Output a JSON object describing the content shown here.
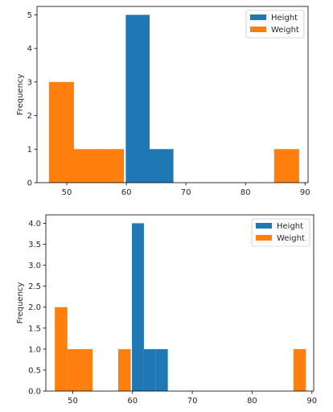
{
  "chart_data": [
    {
      "type": "bar",
      "title": "",
      "xlabel": "",
      "ylabel": "Frequency",
      "xlim": [
        45,
        90.5
      ],
      "ylim": [
        0,
        5.25
      ],
      "xticks": [
        50,
        60,
        70,
        80,
        90
      ],
      "yticks": [
        0,
        1,
        2,
        3,
        4,
        5
      ],
      "legend": "top-right",
      "series": [
        {
          "name": "Height",
          "color": "#1f77b4",
          "bins": [
            {
              "x0": 59.9,
              "x1": 63.9,
              "count": 5
            },
            {
              "x0": 63.9,
              "x1": 67.9,
              "count": 1
            }
          ]
        },
        {
          "name": "Weight",
          "color": "#ff7f0e",
          "bins": [
            {
              "x0": 47.0,
              "x1": 51.2,
              "count": 3
            },
            {
              "x0": 51.2,
              "x1": 55.4,
              "count": 1
            },
            {
              "x0": 55.4,
              "x1": 59.6,
              "count": 1
            },
            {
              "x0": 84.8,
              "x1": 89.0,
              "count": 1
            }
          ]
        }
      ]
    },
    {
      "type": "bar",
      "title": "",
      "xlabel": "",
      "ylabel": "Frequency",
      "xlim": [
        45.5,
        90.3
      ],
      "ylim": [
        0,
        4.2
      ],
      "xticks": [
        50,
        60,
        70,
        80,
        90
      ],
      "yticks": [
        0.0,
        0.5,
        1.0,
        1.5,
        2.0,
        2.5,
        3.0,
        3.5,
        4.0
      ],
      "ytick_labels": [
        "0.0",
        "0.5",
        "1.0",
        "1.5",
        "2.0",
        "2.5",
        "3.0",
        "3.5",
        "4.0"
      ],
      "legend": "top-right",
      "series": [
        {
          "name": "Height",
          "color": "#1f77b4",
          "bins": [
            {
              "x0": 59.9,
              "x1": 61.9,
              "count": 4
            },
            {
              "x0": 61.9,
              "x1": 63.9,
              "count": 1
            },
            {
              "x0": 63.9,
              "x1": 65.9,
              "count": 1
            }
          ]
        },
        {
          "name": "Weight",
          "color": "#ff7f0e",
          "bins": [
            {
              "x0": 47.0,
              "x1": 49.1,
              "count": 2
            },
            {
              "x0": 49.1,
              "x1": 51.2,
              "count": 1
            },
            {
              "x0": 51.2,
              "x1": 53.3,
              "count": 1
            },
            {
              "x0": 57.6,
              "x1": 59.7,
              "count": 1
            },
            {
              "x0": 86.9,
              "x1": 89.0,
              "count": 1
            }
          ]
        }
      ]
    }
  ]
}
